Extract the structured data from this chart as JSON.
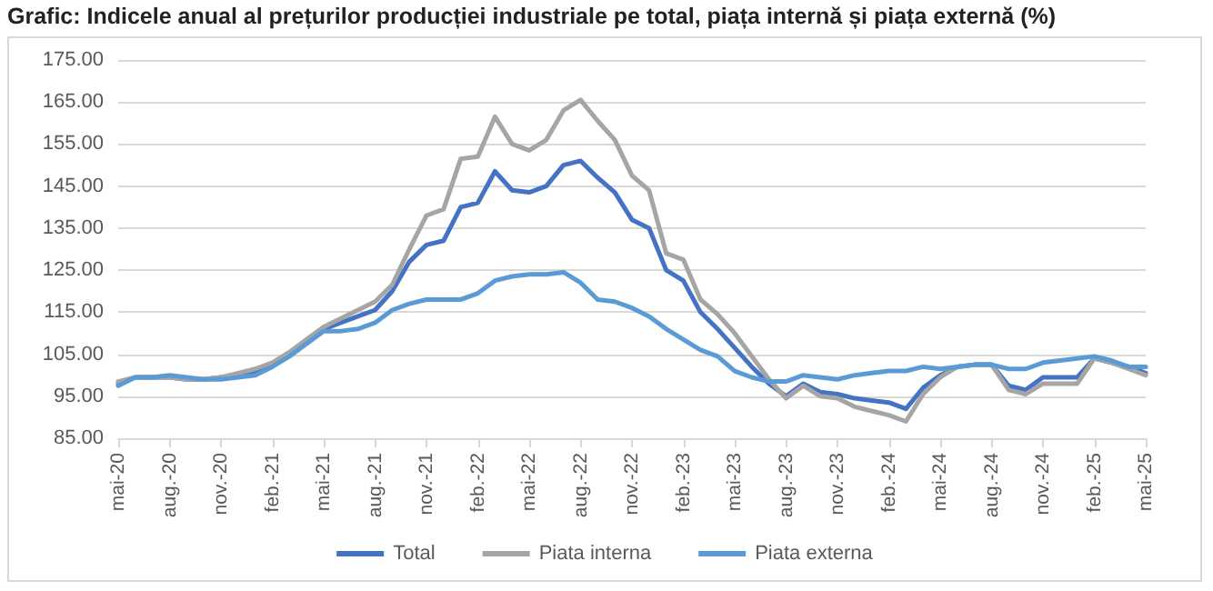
{
  "chart_data": {
    "type": "line",
    "title": "Grafic: Indicele anual al prețurilor producției industriale pe total, piața internă și piața externă (%)",
    "categories": [
      "mai-20",
      null,
      null,
      "aug.-20",
      null,
      null,
      "nov.-20",
      null,
      null,
      "feb.-21",
      null,
      null,
      "mai-21",
      null,
      null,
      "aug.-21",
      null,
      null,
      "nov.-21",
      null,
      null,
      "feb.-22",
      null,
      null,
      "mai-22",
      null,
      null,
      "aug.-22",
      null,
      null,
      "nov.-22",
      null,
      null,
      "feb.-23",
      null,
      null,
      "mai-23",
      null,
      null,
      "aug.-23",
      null,
      null,
      "nov.-23",
      null,
      null,
      "feb.-24",
      null,
      null,
      "mai-24",
      null,
      null,
      "aug.-24",
      null,
      null,
      "nov.-24",
      null,
      null,
      "feb.-25",
      null,
      null,
      "mai-25"
    ],
    "series": [
      {
        "name": "Total",
        "color": "#4472c4",
        "values": [
          98,
          99.5,
          99.5,
          99.5,
          99,
          99,
          99.5,
          100,
          100.5,
          102.5,
          105,
          108,
          111,
          112.5,
          114,
          115.5,
          120,
          127,
          131,
          132,
          140,
          141,
          148.5,
          144,
          143.5,
          145,
          150,
          151,
          147,
          143.5,
          137,
          135,
          125,
          122.5,
          115,
          111,
          106.5,
          102,
          98,
          95,
          98,
          96,
          95.5,
          94.5,
          94,
          93.5,
          92,
          97,
          100,
          102,
          102.5,
          102.5,
          97.5,
          96.5,
          99.5,
          99.5,
          99.5,
          104,
          103,
          102,
          100.5
        ]
      },
      {
        "name": "Piata interna",
        "color": "#a5a5a5",
        "values": [
          98.5,
          99.5,
          99.5,
          99.5,
          99,
          99,
          99.5,
          100.5,
          101.5,
          103,
          105.5,
          108.5,
          111.5,
          113.5,
          115.5,
          117.5,
          121.5,
          130,
          138,
          139.5,
          151.5,
          152,
          161.5,
          155,
          153.5,
          156,
          163,
          165.5,
          160.5,
          156,
          147.5,
          144,
          129,
          127.5,
          118,
          114.5,
          110,
          104.5,
          99,
          94.5,
          97.5,
          95,
          94.5,
          92.5,
          91.5,
          90.5,
          89,
          95.5,
          99.5,
          102,
          102.5,
          102.5,
          96.5,
          95.5,
          98,
          98,
          98,
          104,
          103,
          101.5,
          100
        ]
      },
      {
        "name": "Piata externa",
        "color": "#5b9bd5",
        "values": [
          97.5,
          99.5,
          99.5,
          100,
          99.5,
          99,
          99,
          99.5,
          100,
          102,
          104.5,
          107.5,
          110.5,
          110.5,
          111,
          112.5,
          115.5,
          117,
          118,
          118,
          118,
          119.5,
          122.5,
          123.5,
          124,
          124,
          124.5,
          122,
          118,
          117.5,
          116,
          114,
          111,
          108.5,
          106,
          104.5,
          101,
          99.5,
          98.5,
          98.5,
          100,
          99.5,
          99,
          100,
          100.5,
          101,
          101,
          102,
          101.5,
          102,
          102.5,
          102.5,
          101.5,
          101.5,
          103,
          103.5,
          104,
          104.5,
          103.5,
          102,
          102
        ]
      }
    ],
    "ylim": [
      85,
      175
    ],
    "yticks": [
      {
        "value": 85,
        "label": "85.00"
      },
      {
        "value": 95,
        "label": "95.00"
      },
      {
        "value": 105,
        "label": "105.00"
      },
      {
        "value": 115,
        "label": "115.00"
      },
      {
        "value": 125,
        "label": "125.00"
      },
      {
        "value": 135,
        "label": "135.00"
      },
      {
        "value": 145,
        "label": "145.00"
      },
      {
        "value": 155,
        "label": "155.00"
      },
      {
        "value": 165,
        "label": "165.00"
      },
      {
        "value": 175,
        "label": "175.00"
      }
    ],
    "grid": "y",
    "legend": "bottom",
    "marker": "none",
    "line_style": "solid"
  }
}
